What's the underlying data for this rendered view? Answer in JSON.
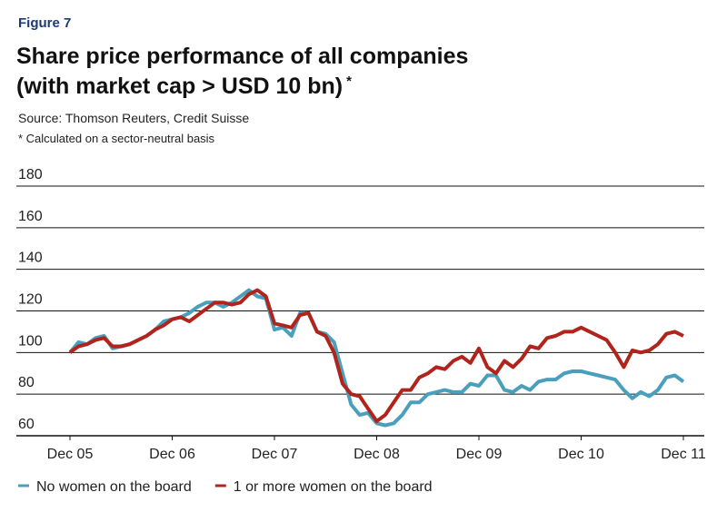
{
  "chart_data": {
    "type": "line",
    "figure_label": "Figure 7",
    "title_lines": [
      "Share price performance of all companies",
      "(with market cap > USD 10 bn)"
    ],
    "title_mark": "*",
    "source": "Source: Thomson Reuters, Credit Suisse",
    "note": "* Calculated on a sector-neutral basis",
    "categories": [
      "Dec 05",
      null,
      null,
      null,
      null,
      null,
      null,
      null,
      null,
      null,
      null,
      null,
      "Dec 06",
      null,
      null,
      null,
      null,
      null,
      null,
      null,
      null,
      null,
      null,
      null,
      "Dec 07",
      null,
      null,
      null,
      null,
      null,
      null,
      null,
      null,
      null,
      null,
      null,
      "Dec 08",
      null,
      null,
      null,
      null,
      null,
      null,
      null,
      null,
      null,
      null,
      null,
      "Dec 09",
      null,
      null,
      null,
      null,
      null,
      null,
      null,
      null,
      null,
      null,
      null,
      "Dec 10",
      null,
      null,
      null,
      null,
      null,
      null,
      null,
      null,
      null,
      null,
      null,
      "Dec 11"
    ],
    "series": [
      {
        "name": "No women on the board",
        "color": "#4a9fbd",
        "values": [
          100,
          105,
          104,
          107,
          108,
          102,
          103,
          104,
          106,
          108,
          111,
          115,
          116,
          117,
          119,
          122,
          124,
          124,
          122,
          124,
          127,
          130,
          127,
          126,
          111,
          112,
          108,
          119,
          119,
          110,
          109,
          105,
          90,
          75,
          70,
          71,
          66,
          65,
          66,
          70,
          76,
          76,
          80,
          81,
          82,
          81,
          81,
          85,
          84,
          89,
          89,
          82,
          81,
          84,
          82,
          86,
          87,
          87,
          90,
          91,
          91,
          90,
          89,
          88,
          87,
          82,
          78,
          81,
          79,
          82,
          88,
          89,
          86
        ]
      },
      {
        "name": "1 or more women on the board",
        "color": "#b0241c",
        "values": [
          100,
          103,
          104,
          106,
          107,
          103,
          103,
          104,
          106,
          108,
          111,
          113,
          116,
          117,
          115,
          118,
          121,
          124,
          124,
          123,
          124,
          128,
          130,
          127,
          114,
          113,
          112,
          118,
          119,
          110,
          108,
          100,
          85,
          80,
          79,
          73,
          67,
          70,
          76,
          82,
          82,
          88,
          90,
          93,
          92,
          96,
          98,
          95,
          102,
          93,
          90,
          96,
          93,
          97,
          103,
          102,
          107,
          108,
          110,
          110,
          112,
          110,
          108,
          106,
          100,
          93,
          101,
          100,
          101,
          104,
          109,
          110,
          108
        ]
      }
    ],
    "ylim": [
      60,
      180
    ],
    "yticks": [
      60,
      80,
      100,
      120,
      140,
      160,
      180
    ],
    "grid": true
  }
}
